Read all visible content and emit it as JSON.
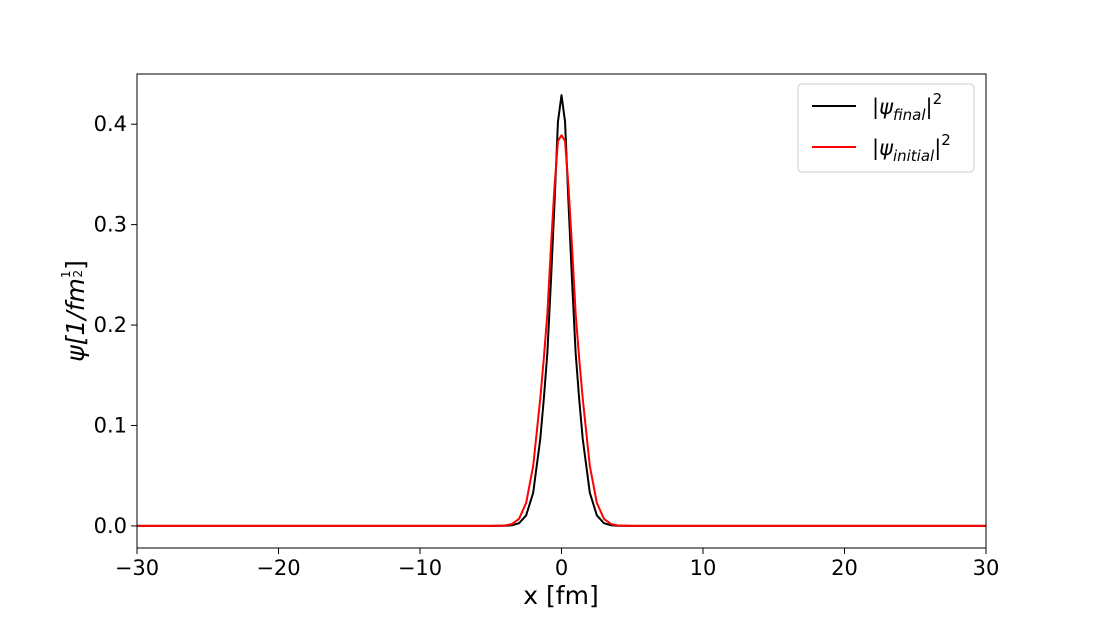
{
  "chart_data": {
    "type": "line",
    "title": "",
    "xlabel": "x [fm]",
    "ylabel": "ψ[1/fm",
    "ylabel_exponent_num": "1",
    "ylabel_exponent_den": "2",
    "ylabel_close": "]",
    "xlim": [
      -30,
      30
    ],
    "ylim": [
      -0.022,
      0.45
    ],
    "x_ticks": [
      -30,
      -20,
      -10,
      0,
      10,
      20,
      30
    ],
    "x_tick_labels": [
      "−30",
      "−20",
      "−10",
      "0",
      "10",
      "20",
      "30"
    ],
    "y_ticks": [
      0.0,
      0.1,
      0.2,
      0.3,
      0.4
    ],
    "y_tick_labels": [
      "0.0",
      "0.1",
      "0.2",
      "0.3",
      "0.4"
    ],
    "grid": false,
    "legend_position": "top-right",
    "series": [
      {
        "name": "final",
        "color": "#000000",
        "x": [
          -30,
          -5,
          -4,
          -3.5,
          -3,
          -2.5,
          -2,
          -1.5,
          -1.25,
          -1,
          -0.75,
          -0.5,
          -0.25,
          0,
          0.25,
          0.5,
          0.75,
          1,
          1.25,
          1.5,
          2,
          2.5,
          3,
          3.5,
          4,
          5,
          30
        ],
        "y": [
          0,
          0,
          0.0001,
          0.0006,
          0.0027,
          0.0104,
          0.0331,
          0.0867,
          0.1263,
          0.1721,
          0.2426,
          0.3195,
          0.4026,
          0.429,
          0.4026,
          0.3195,
          0.2426,
          0.1721,
          0.1263,
          0.0867,
          0.0331,
          0.0104,
          0.0027,
          0.0006,
          0.0001,
          0,
          0
        ]
      },
      {
        "name": "initial",
        "color": "#ff0000",
        "x": [
          -30,
          -5,
          -4,
          -3.5,
          -3,
          -2.5,
          -2,
          -1.5,
          -1.25,
          -1,
          -0.75,
          -0.5,
          -0.25,
          0,
          0.25,
          0.5,
          0.75,
          1,
          1.25,
          1.5,
          2,
          2.5,
          3,
          3.5,
          4,
          5,
          30
        ],
        "y": [
          0,
          0,
          0.0004,
          0.0018,
          0.0071,
          0.0228,
          0.0598,
          0.1268,
          0.1667,
          0.2114,
          0.2766,
          0.3364,
          0.3832,
          0.389,
          0.3832,
          0.3364,
          0.2766,
          0.2114,
          0.1667,
          0.1268,
          0.0598,
          0.0228,
          0.0071,
          0.0018,
          0.0004,
          0,
          0
        ]
      }
    ],
    "legend": [
      {
        "prefix": "|ψ",
        "sub": "final",
        "suffix": "|",
        "sup": "2"
      },
      {
        "prefix": "|ψ",
        "sub": "initial",
        "suffix": "|",
        "sup": "2"
      }
    ]
  }
}
